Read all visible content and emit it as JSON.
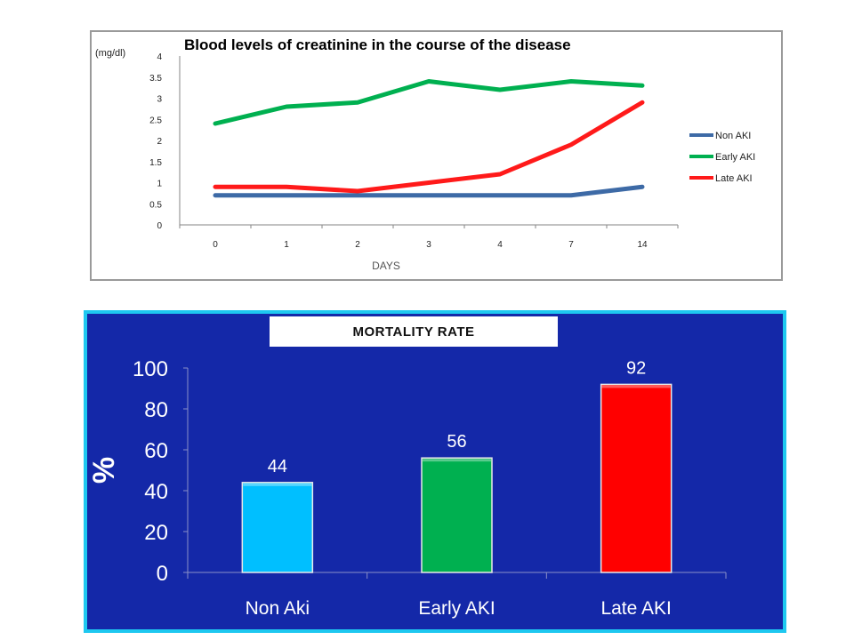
{
  "chart_data": [
    {
      "type": "line",
      "title": "Blood levels of creatinine in the course of the disease",
      "ylabel": "(mg/dl)",
      "xlabel": "DAYS",
      "categories": [
        "0",
        "1",
        "2",
        "3",
        "4",
        "7",
        "14"
      ],
      "ylim": [
        0,
        4
      ],
      "yticks": [
        "0",
        "0.5",
        "1",
        "1.5",
        "2",
        "2.5",
        "3",
        "3.5",
        "4"
      ],
      "grid": false,
      "legend_position": "right",
      "series": [
        {
          "name": "Non AKI",
          "color": "#3d6aa6",
          "values": [
            0.7,
            0.7,
            0.7,
            0.7,
            0.7,
            0.7,
            0.9
          ]
        },
        {
          "name": "Early AKI",
          "color": "#00b050",
          "values": [
            2.4,
            2.8,
            2.9,
            3.4,
            3.2,
            3.4,
            3.3
          ]
        },
        {
          "name": "Late AKI",
          "color": "#ff1a1a",
          "values": [
            0.9,
            0.9,
            0.8,
            1.0,
            1.2,
            1.9,
            2.9
          ]
        }
      ]
    },
    {
      "type": "bar",
      "title": "MORTALITY RATE",
      "ylabel": "%",
      "categories": [
        "Non Aki",
        "Early AKI",
        "Late AKI"
      ],
      "values": [
        44,
        56,
        92
      ],
      "data_labels": [
        "44",
        "56",
        "92"
      ],
      "colors": [
        "#00bfff",
        "#00b050",
        "#ff0000"
      ],
      "ylim": [
        0,
        100
      ],
      "yticks": [
        "0",
        "20",
        "40",
        "60",
        "80",
        "100"
      ],
      "grid": false
    }
  ]
}
